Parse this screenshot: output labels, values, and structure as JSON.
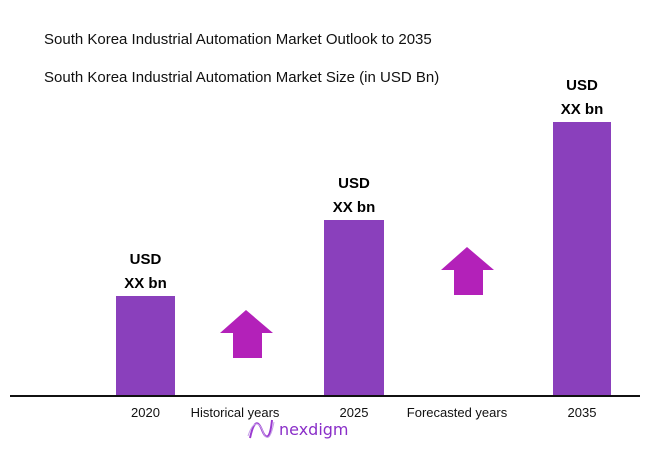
{
  "chart_data": {
    "type": "bar",
    "title": "South Korea Industrial Automation Market Outlook to 2035",
    "subtitle": "South Korea Industrial Automation Market Size (in USD Bn)",
    "categories": [
      "2020",
      "2025",
      "2035"
    ],
    "values": [
      null,
      null,
      null
    ],
    "data_labels": [
      [
        "USD",
        "XX bn"
      ],
      [
        "USD",
        "XX bn"
      ],
      [
        "USD",
        "XX bn"
      ]
    ],
    "period_labels": [
      "Historical years",
      "Forecasted years"
    ],
    "growth_arrows": 2,
    "grid": false,
    "legend": "none"
  },
  "colors": {
    "bar": "#8a40bc",
    "arrow": "#b321b9",
    "axis": "#111111"
  },
  "logo": {
    "text": "nexdigm"
  }
}
